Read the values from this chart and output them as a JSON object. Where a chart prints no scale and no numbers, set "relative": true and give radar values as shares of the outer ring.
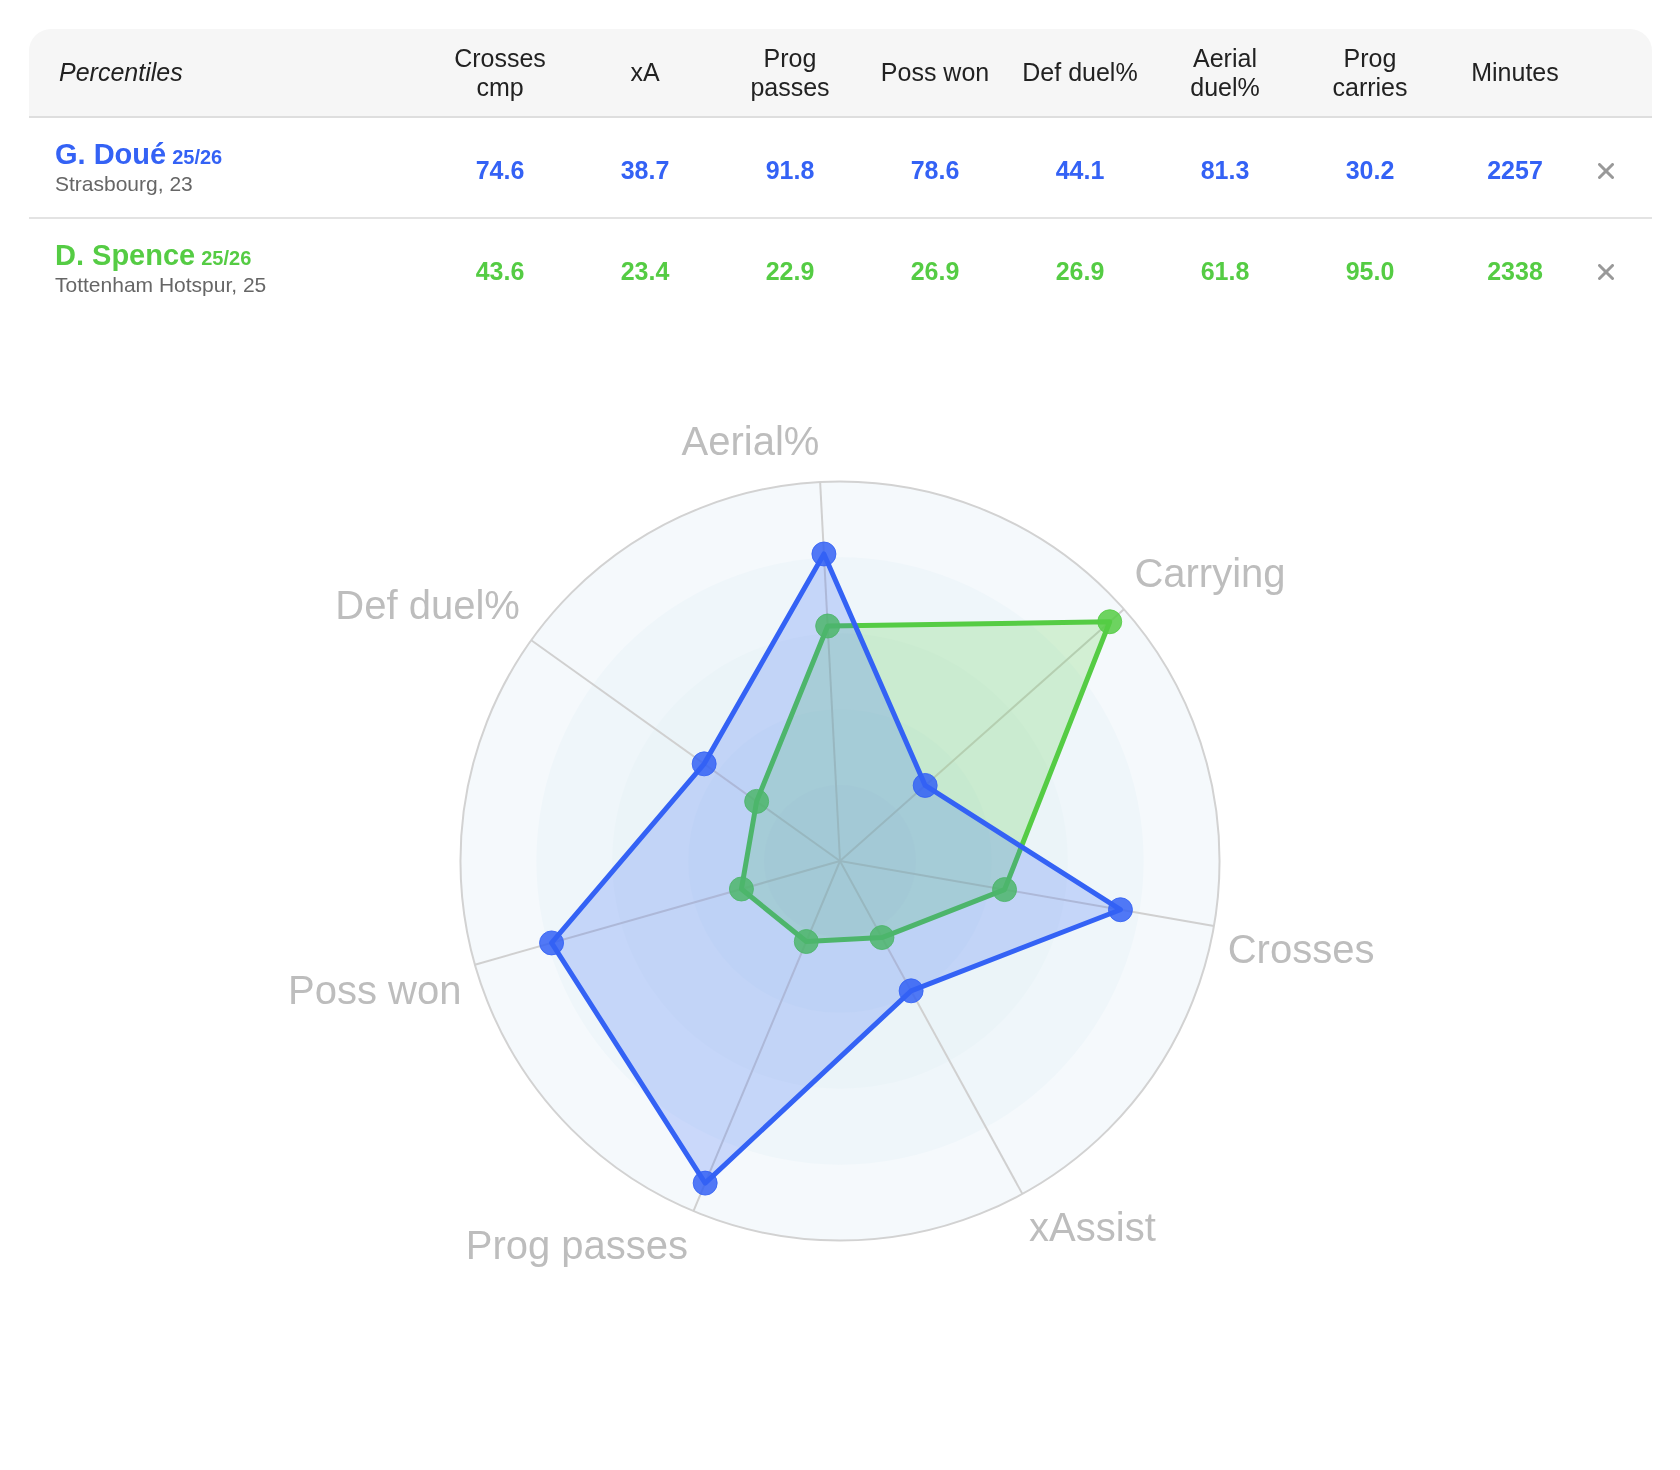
{
  "chart_data": [
    {
      "type": "other",
      "title": "Percentiles",
      "categories": [
        "Crosses cmp",
        "xA",
        "Prog passes",
        "Poss won",
        "Def duel%",
        "Aerial duel%",
        "Prog carries",
        "Minutes"
      ],
      "series": [
        {
          "name": "G. Doué",
          "color": "#3462f5",
          "values": [
            74.6,
            38.7,
            91.8,
            78.6,
            44.1,
            81.3,
            30.2,
            2257
          ]
        },
        {
          "name": "D. Spence",
          "color": "#55cc44",
          "values": [
            43.6,
            23.4,
            22.9,
            26.9,
            26.9,
            61.8,
            95,
            2338
          ],
          "value_labels": [
            "43.6",
            "23.4",
            "22.9",
            "26.9",
            "26.9",
            "61.8",
            "95.0",
            "2338"
          ]
        }
      ],
      "data_labels": true,
      "annotations": [
        "25/26",
        "Strasbourg, 23",
        "25/26",
        "Tottenham Hotspur, 25"
      ]
    },
    {
      "type": "radar",
      "categories": [
        "Aerial%",
        "Carrying",
        "Crosses",
        "xAssist",
        "Prog passes",
        "Poss won",
        "Def duel%"
      ],
      "relative": true,
      "series": [
        {
          "color": "#3462f5",
          "values": [
            0.81,
            0.3,
            0.75,
            0.39,
            0.92,
            0.79,
            0.44
          ]
        },
        {
          "color": "#55cc44",
          "values": [
            0.62,
            0.95,
            0.44,
            0.23,
            0.23,
            0.27,
            0.27
          ]
        }
      ],
      "marker": "circle",
      "grid": true
    }
  ]
}
